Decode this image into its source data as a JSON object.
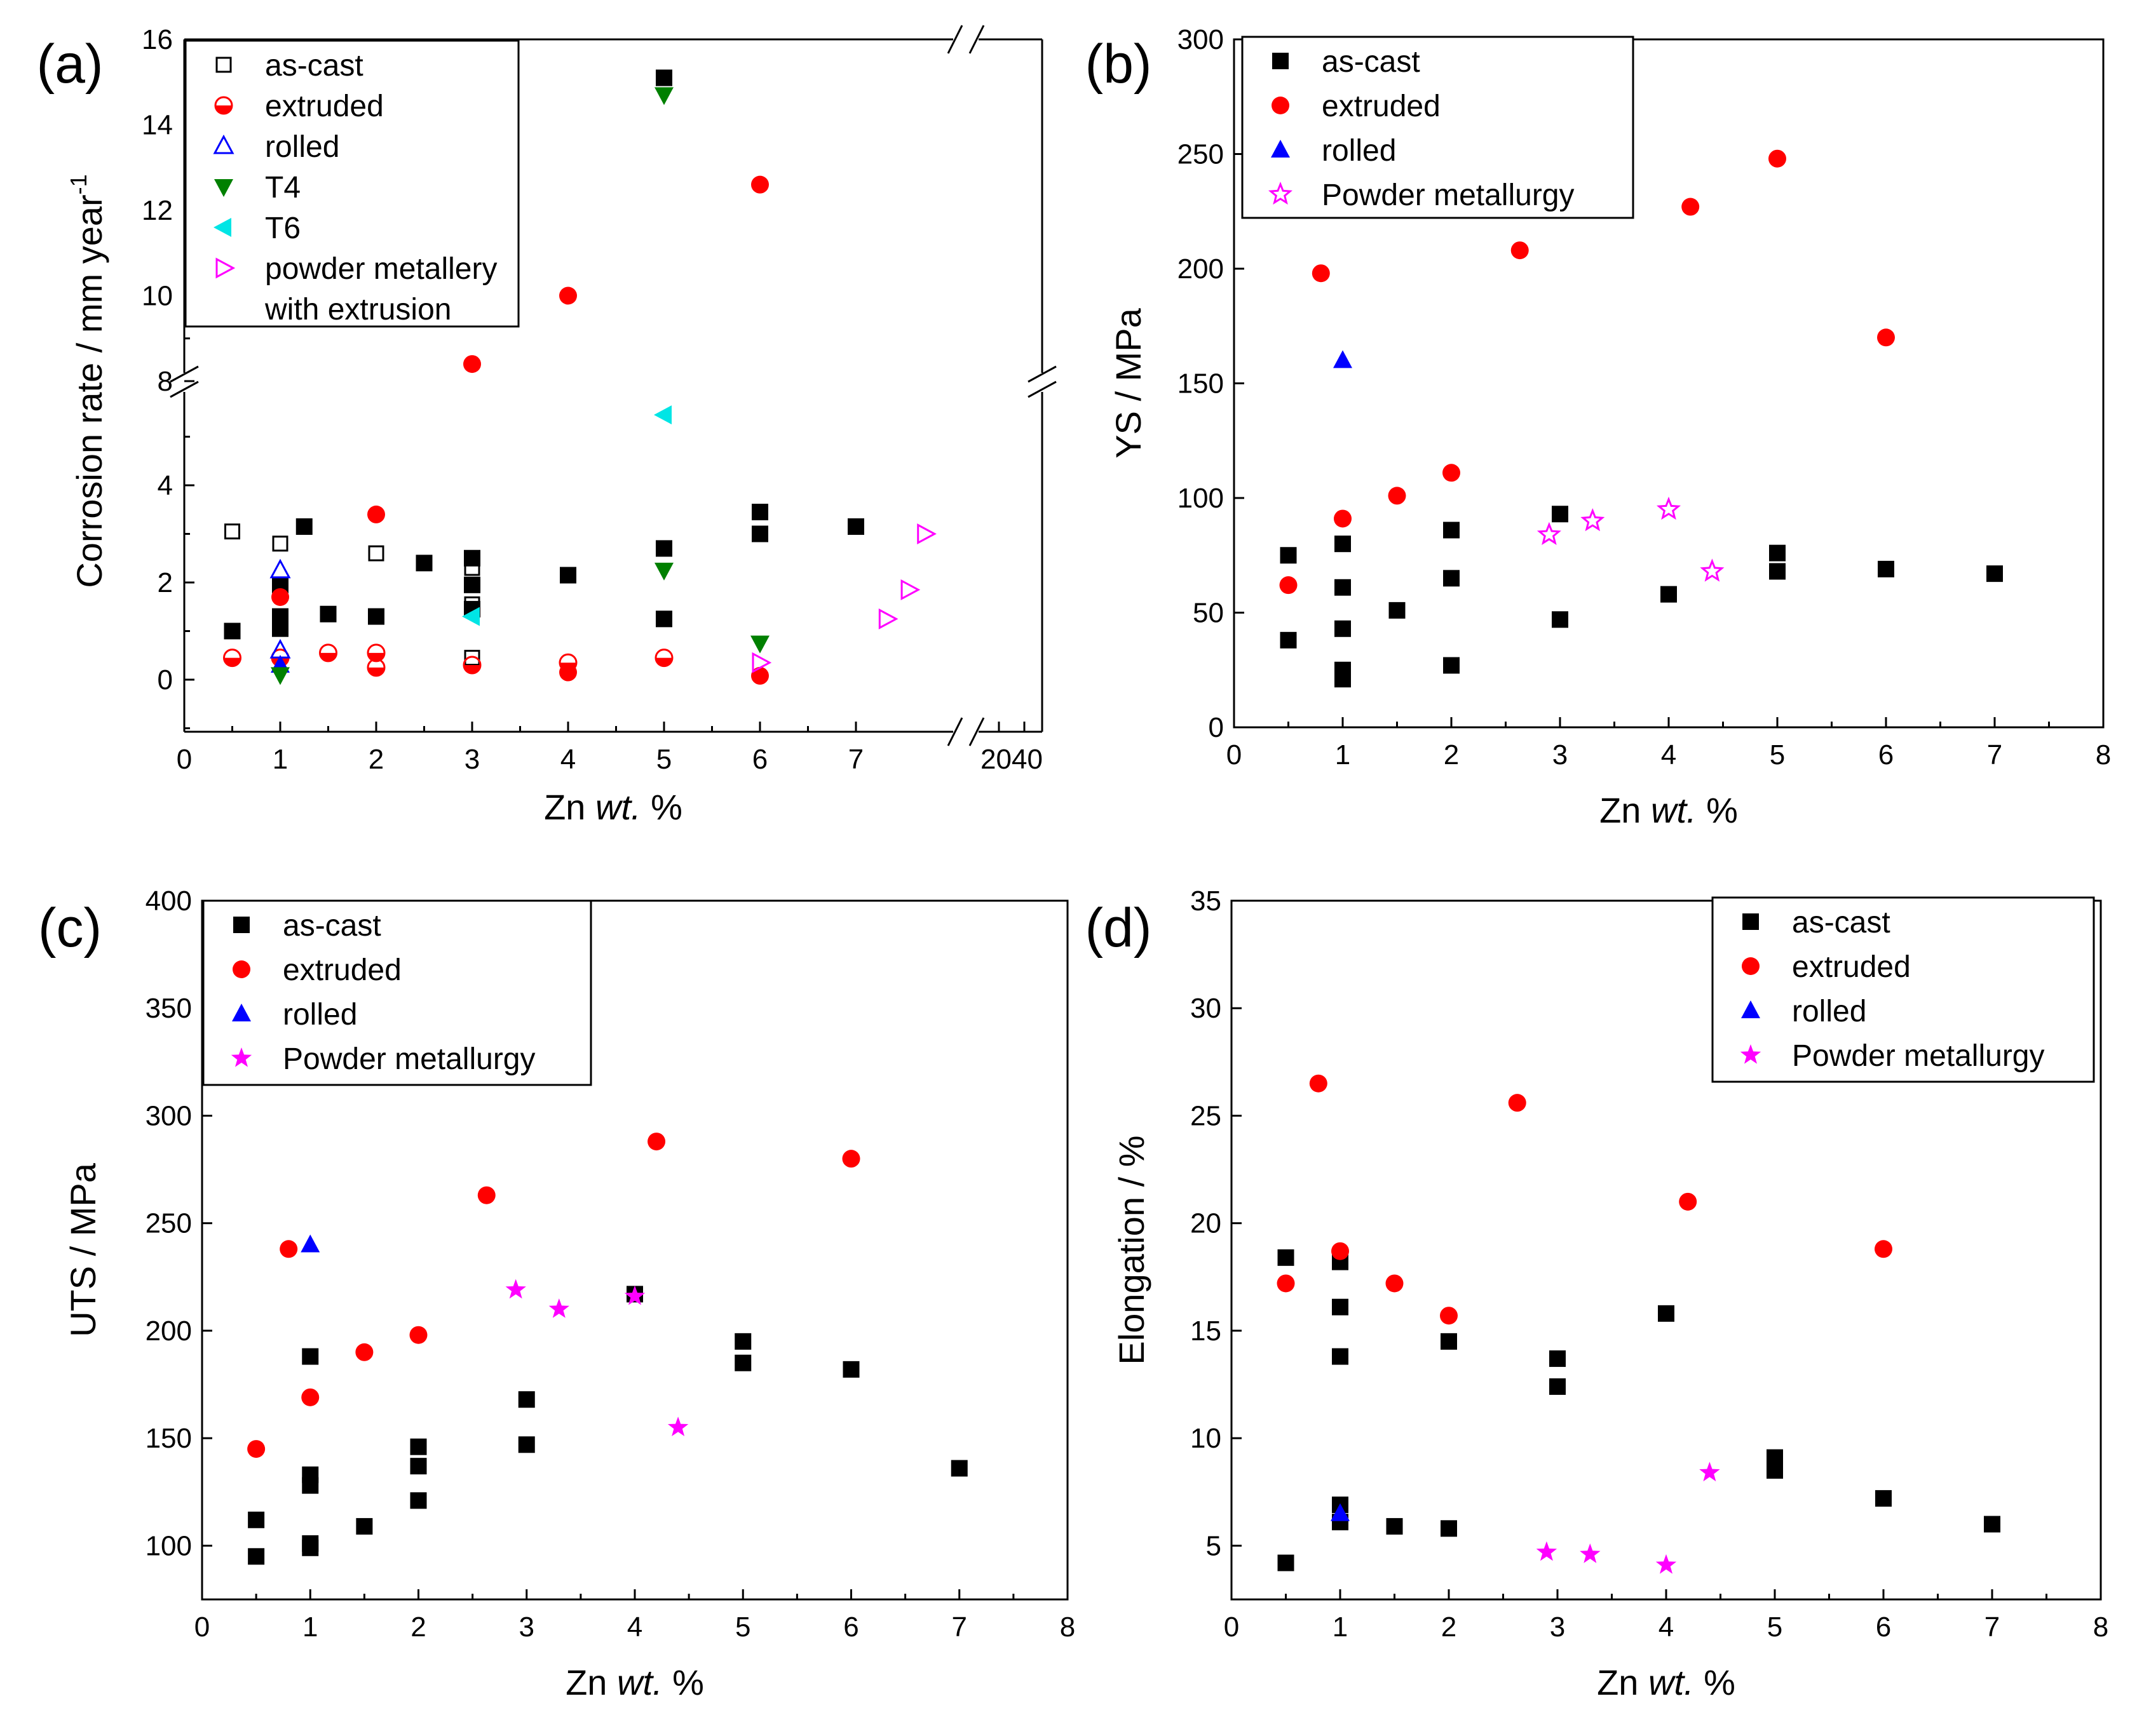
{
  "chart_data": [
    {
      "id": "a",
      "type": "scatter",
      "panel_label": "(a)",
      "xlabel": "Zn",
      "xlabel_italic": "wt.",
      "xlabel_unit": "%",
      "ylabel": "Corrosion rate / mm year",
      "ylabel_sup": "-1",
      "ylim_lower": [
        -1,
        5.5
      ],
      "ylim_upper": [
        7.5,
        16
      ],
      "xlim": [
        0,
        7.7
      ],
      "x_tick_labels": [
        "0",
        "1",
        "2",
        "3",
        "4",
        "5",
        "6",
        "7"
      ],
      "x_tick_values": [
        0,
        1,
        2,
        3,
        4,
        5,
        6,
        7
      ],
      "x_extra_tick_label": "2040",
      "y_tick_labels_lower": [
        "0",
        "2",
        "4"
      ],
      "y_tick_values_lower": [
        0,
        2,
        4
      ],
      "y_tick_labels_upper": [
        "8",
        "10",
        "12",
        "14",
        "16"
      ],
      "y_tick_values_upper": [
        8,
        10,
        12,
        14,
        16
      ],
      "series": [
        {
          "name": "as-cast",
          "marker": "square-open",
          "color": "#000000",
          "points": [
            [
              0.5,
              3.05
            ],
            [
              1,
              2.8
            ],
            [
              2,
              2.6
            ],
            [
              3,
              2.3
            ],
            [
              0.5,
              1.0
            ],
            [
              1.5,
              1.35
            ],
            [
              2,
              1.3
            ],
            [
              3,
              1.55
            ],
            [
              3,
              0.45
            ]
          ]
        },
        {
          "name": "",
          "marker": "square",
          "color": "#000000",
          "points": [
            [
              0.5,
              1.0
            ],
            [
              1,
              1.95
            ],
            [
              1,
              1.3
            ],
            [
              1,
              1.05
            ],
            [
              1.25,
              3.15
            ],
            [
              1.5,
              1.35
            ],
            [
              2,
              1.3
            ],
            [
              2.5,
              2.4
            ],
            [
              3,
              2.5
            ],
            [
              3,
              1.95
            ],
            [
              3,
              1.45
            ],
            [
              4,
              2.15
            ],
            [
              5,
              2.7
            ],
            [
              5,
              1.25
            ],
            [
              6,
              3.45
            ],
            [
              6,
              3.0
            ],
            [
              7,
              3.15
            ],
            [
              5,
              15.1
            ]
          ]
        },
        {
          "name": "extruded",
          "marker": "circle-half",
          "color": "#ff0000",
          "points": [
            [
              0.5,
              0.45
            ],
            [
              1,
              0.45
            ],
            [
              1.5,
              0.55
            ],
            [
              2,
              0.55
            ],
            [
              2,
              0.25
            ],
            [
              3,
              0.3
            ],
            [
              4,
              0.35
            ],
            [
              5,
              0.45
            ]
          ]
        },
        {
          "name": "",
          "marker": "circle",
          "color": "#ff0000",
          "points": [
            [
              1,
              1.7
            ],
            [
              2,
              3.4
            ],
            [
              4,
              0.15
            ],
            [
              6,
              0.08
            ],
            [
              3,
              8.4
            ],
            [
              4,
              10.0
            ],
            [
              6,
              12.6
            ]
          ]
        },
        {
          "name": "rolled",
          "marker": "triangle-up-open",
          "color": "#0000ff",
          "points": [
            [
              1,
              2.25
            ],
            [
              1,
              0.6
            ]
          ]
        },
        {
          "name": "",
          "marker": "triangle-up",
          "color": "#0000ff",
          "points": [
            [
              1,
              0.3
            ]
          ]
        },
        {
          "name": "T4",
          "marker": "triangle-down",
          "color": "#008000",
          "points": [
            [
              1,
              0.1
            ],
            [
              5,
              2.25
            ],
            [
              6,
              0.75
            ],
            [
              5,
              14.7
            ]
          ]
        },
        {
          "name": "T6",
          "marker": "triangle-left",
          "color": "#00e5e5",
          "points": [
            [
              3,
              1.3
            ],
            [
              5,
              5.45
            ]
          ]
        },
        {
          "name": "powder metallery",
          "name_line2": "with extrusion",
          "marker": "triangle-right-open",
          "color": "#ff00ff",
          "points": [
            [
              6,
              0.35
            ],
            [
              7.32,
              1.25
            ],
            [
              7.55,
              1.85
            ],
            [
              7.72,
              3.0
            ]
          ]
        }
      ]
    },
    {
      "id": "b",
      "type": "scatter",
      "panel_label": "(b)",
      "xlabel": "Zn",
      "xlabel_italic": "wt.",
      "xlabel_unit": "%",
      "ylabel": "YS / MPa",
      "xlim": [
        0,
        8
      ],
      "ylim": [
        0,
        300
      ],
      "x_tick_labels": [
        "0",
        "1",
        "2",
        "3",
        "4",
        "5",
        "6",
        "7",
        "8"
      ],
      "x_tick_values": [
        0,
        1,
        2,
        3,
        4,
        5,
        6,
        7,
        8
      ],
      "y_tick_labels": [
        "0",
        "50",
        "100",
        "150",
        "200",
        "250",
        "300"
      ],
      "y_tick_values": [
        0,
        50,
        100,
        150,
        200,
        250,
        300
      ],
      "series": [
        {
          "name": "as-cast",
          "marker": "square",
          "color": "#000000",
          "points": [
            [
              0.5,
              75
            ],
            [
              0.5,
              38
            ],
            [
              1,
              80
            ],
            [
              1,
              61
            ],
            [
              1,
              43
            ],
            [
              1,
              25
            ],
            [
              1,
              21
            ],
            [
              1.5,
              51
            ],
            [
              2,
              86
            ],
            [
              2,
              65
            ],
            [
              2,
              27
            ],
            [
              3,
              93
            ],
            [
              3,
              47
            ],
            [
              4,
              58
            ],
            [
              5,
              76
            ],
            [
              5,
              68
            ],
            [
              6,
              69
            ],
            [
              7,
              67
            ]
          ]
        },
        {
          "name": "extruded",
          "marker": "circle",
          "color": "#ff0000",
          "points": [
            [
              0.5,
              62
            ],
            [
              0.8,
              198
            ],
            [
              1,
              91
            ],
            [
              1.5,
              101
            ],
            [
              2,
              111
            ],
            [
              2.63,
              208
            ],
            [
              4.2,
              227
            ],
            [
              5,
              248
            ],
            [
              6,
              170
            ]
          ]
        },
        {
          "name": "rolled",
          "marker": "triangle-up",
          "color": "#0000ff",
          "points": [
            [
              1,
              160
            ]
          ]
        },
        {
          "name": "Powder metallurgy",
          "marker": "star-open",
          "color": "#ff00ff",
          "points": [
            [
              2.9,
              84
            ],
            [
              3.3,
              90
            ],
            [
              4,
              95
            ],
            [
              4.4,
              68
            ]
          ]
        }
      ]
    },
    {
      "id": "c",
      "type": "scatter",
      "panel_label": "(c)",
      "xlabel": "Zn",
      "xlabel_italic": "wt.",
      "xlabel_unit": "%",
      "ylabel": "UTS / MPa",
      "xlim": [
        0,
        8
      ],
      "ylim": [
        75,
        400
      ],
      "x_tick_labels": [
        "0",
        "1",
        "2",
        "3",
        "4",
        "5",
        "6",
        "7",
        "8"
      ],
      "x_tick_values": [
        0,
        1,
        2,
        3,
        4,
        5,
        6,
        7,
        8
      ],
      "y_tick_labels": [
        "100",
        "150",
        "200",
        "250",
        "300",
        "350",
        "400"
      ],
      "y_tick_values": [
        100,
        150,
        200,
        250,
        300,
        350,
        400
      ],
      "series": [
        {
          "name": "as-cast",
          "marker": "square",
          "color": "#000000",
          "points": [
            [
              0.5,
              112
            ],
            [
              0.5,
              95
            ],
            [
              1,
              188
            ],
            [
              1,
              133
            ],
            [
              1,
              128
            ],
            [
              1,
              101
            ],
            [
              1,
              99
            ],
            [
              1.5,
              109
            ],
            [
              2,
              146
            ],
            [
              2,
              137
            ],
            [
              2,
              121
            ],
            [
              3,
              168
            ],
            [
              3,
              147
            ],
            [
              4,
              217
            ],
            [
              5,
              195
            ],
            [
              5,
              185
            ],
            [
              6,
              182
            ],
            [
              7,
              136
            ]
          ]
        },
        {
          "name": "extruded",
          "marker": "circle",
          "color": "#ff0000",
          "points": [
            [
              0.5,
              145
            ],
            [
              0.8,
              238
            ],
            [
              1,
              169
            ],
            [
              1.5,
              190
            ],
            [
              2,
              198
            ],
            [
              2.63,
              263
            ],
            [
              4.2,
              288
            ],
            [
              6,
              280
            ]
          ]
        },
        {
          "name": "rolled",
          "marker": "triangle-up",
          "color": "#0000ff",
          "points": [
            [
              1,
              240
            ]
          ]
        },
        {
          "name": "Powder metallurgy",
          "marker": "star",
          "color": "#ff00ff",
          "points": [
            [
              2.9,
              219
            ],
            [
              3.3,
              210
            ],
            [
              4,
              216
            ],
            [
              4.4,
              155
            ]
          ]
        }
      ]
    },
    {
      "id": "d",
      "type": "scatter",
      "panel_label": "(d)",
      "xlabel": "Zn",
      "xlabel_italic": "wt.",
      "xlabel_unit": "%",
      "ylabel": "Elongation / %",
      "xlim": [
        0,
        8
      ],
      "ylim": [
        2.5,
        35
      ],
      "x_tick_labels": [
        "0",
        "1",
        "2",
        "3",
        "4",
        "5",
        "6",
        "7",
        "8"
      ],
      "x_tick_values": [
        0,
        1,
        2,
        3,
        4,
        5,
        6,
        7,
        8
      ],
      "y_tick_labels": [
        "5",
        "10",
        "15",
        "20",
        "25",
        "30",
        "35"
      ],
      "y_tick_values": [
        5,
        10,
        15,
        20,
        25,
        30,
        35
      ],
      "series": [
        {
          "name": "as-cast",
          "marker": "square",
          "color": "#000000",
          "points": [
            [
              0.5,
              18.4
            ],
            [
              0.5,
              4.2
            ],
            [
              1,
              18.2
            ],
            [
              1,
              16.1
            ],
            [
              1,
              13.8
            ],
            [
              1,
              6.9
            ],
            [
              1,
              6.1
            ],
            [
              1.5,
              5.9
            ],
            [
              2,
              14.5
            ],
            [
              2,
              5.8
            ],
            [
              3,
              13.7
            ],
            [
              3,
              12.4
            ],
            [
              4,
              15.8
            ],
            [
              5,
              9.1
            ],
            [
              5,
              8.5
            ],
            [
              6,
              7.2
            ],
            [
              7,
              6.0
            ]
          ]
        },
        {
          "name": "extruded",
          "marker": "circle",
          "color": "#ff0000",
          "points": [
            [
              0.5,
              17.2
            ],
            [
              0.8,
              26.5
            ],
            [
              1,
              18.7
            ],
            [
              1.5,
              17.2
            ],
            [
              2,
              15.7
            ],
            [
              2.63,
              25.6
            ],
            [
              4.2,
              21.0
            ],
            [
              6,
              18.8
            ]
          ]
        },
        {
          "name": "rolled",
          "marker": "triangle-up",
          "color": "#0000ff",
          "points": [
            [
              1,
              6.5
            ]
          ]
        },
        {
          "name": "Powder metallurgy",
          "marker": "star",
          "color": "#ff00ff",
          "points": [
            [
              2.9,
              4.7
            ],
            [
              3.3,
              4.6
            ],
            [
              4,
              4.1
            ],
            [
              4.4,
              8.4
            ]
          ]
        }
      ]
    }
  ]
}
